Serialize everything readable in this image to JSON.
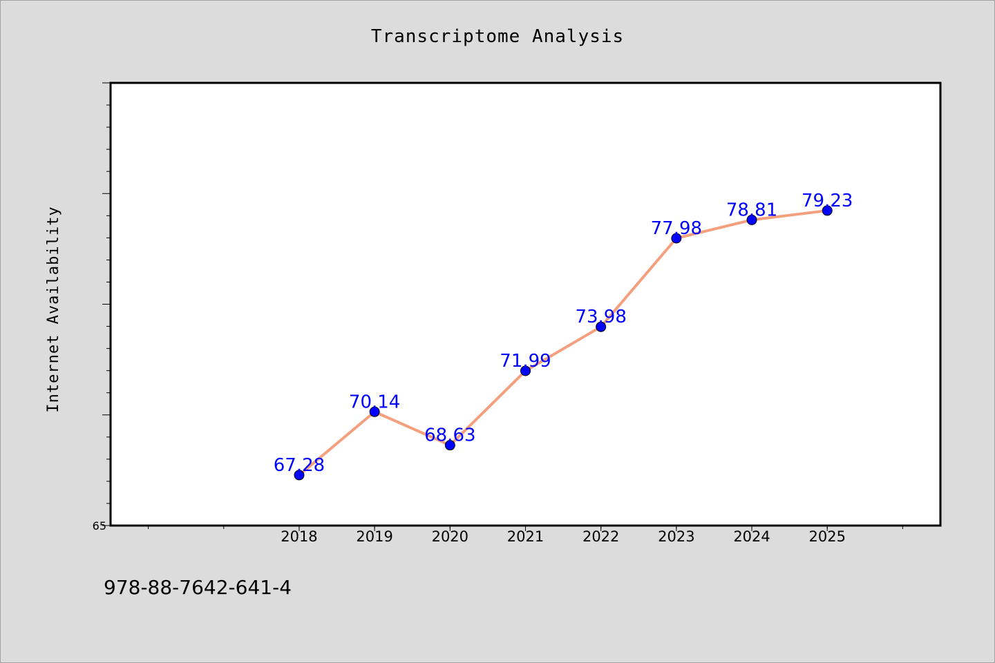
{
  "chart_data": {
    "type": "line",
    "title": "Transcriptome Analysis",
    "xlabel": "",
    "ylabel": "Internet Availability",
    "categories": [
      "2018",
      "2019",
      "2020",
      "2021",
      "2022",
      "2023",
      "2024",
      "2025"
    ],
    "series": [
      {
        "values": [
          67.28,
          70.14,
          68.63,
          71.99,
          73.98,
          77.98,
          78.81,
          79.23
        ],
        "data_labels": [
          "67.28",
          "70.14",
          "68.63",
          "71.99",
          "73.98",
          "77.98",
          "78.81",
          "79.23"
        ],
        "line_color": "#f4a07f",
        "marker_color": "#0000ff"
      }
    ],
    "xlim": [
      2015.5,
      2026.5
    ],
    "ylim": [
      65,
      85
    ],
    "y_tick_labels": [
      "65"
    ],
    "grid": false,
    "legend": "none"
  },
  "footer": {
    "code": "978-88-7642-641-4"
  }
}
